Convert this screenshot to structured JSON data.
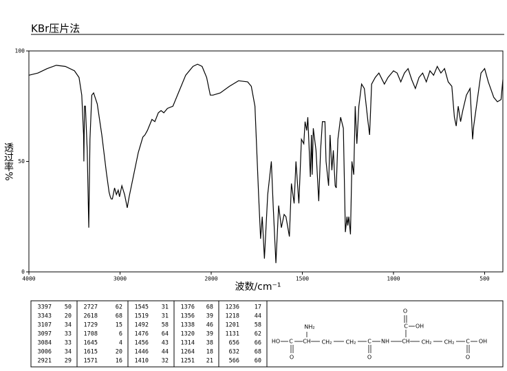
{
  "chart_data": {
    "type": "line",
    "title": "KBr压片法",
    "x_label": "波数/cm⁻¹",
    "y_label": "透过率%",
    "xlim": [
      4000,
      400
    ],
    "xticks": [
      4000,
      3000,
      2000,
      1500,
      1000,
      500
    ],
    "ylim": [
      0,
      100
    ],
    "yticks": [
      0,
      50,
      100
    ],
    "color": "#000000",
    "x": [
      4000,
      3900,
      3800,
      3700,
      3600,
      3500,
      3450,
      3420,
      3400,
      3397,
      3390,
      3380,
      3360,
      3343,
      3330,
      3310,
      3290,
      3250,
      3200,
      3150,
      3120,
      3107,
      3097,
      3084,
      3060,
      3040,
      3020,
      3006,
      2980,
      2950,
      2921,
      2900,
      2850,
      2800,
      2750,
      2727,
      2700,
      2650,
      2618,
      2580,
      2550,
      2520,
      2480,
      2420,
      2350,
      2280,
      2200,
      2150,
      2100,
      2050,
      2010,
      1990,
      1950,
      1900,
      1850,
      1800,
      1780,
      1760,
      1740,
      1729,
      1720,
      1708,
      1690,
      1670,
      1660,
      1645,
      1630,
      1615,
      1600,
      1590,
      1571,
      1560,
      1545,
      1535,
      1519,
      1505,
      1492,
      1485,
      1476,
      1470,
      1456,
      1450,
      1446,
      1440,
      1425,
      1410,
      1400,
      1390,
      1376,
      1370,
      1356,
      1348,
      1338,
      1330,
      1320,
      1314,
      1305,
      1290,
      1275,
      1264,
      1255,
      1251,
      1245,
      1236,
      1228,
      1218,
      1210,
      1201,
      1190,
      1175,
      1160,
      1140,
      1131,
      1120,
      1100,
      1080,
      1050,
      1030,
      1000,
      980,
      960,
      940,
      920,
      900,
      880,
      860,
      840,
      820,
      800,
      780,
      760,
      740,
      720,
      700,
      680,
      666,
      656,
      645,
      632,
      620,
      600,
      580,
      566,
      560,
      550,
      540,
      520,
      500,
      480,
      450,
      430,
      410,
      400
    ],
    "values": [
      89,
      90,
      92,
      93.5,
      93,
      91,
      88,
      80,
      62,
      50,
      75,
      75,
      55,
      20,
      60,
      80,
      81,
      76,
      62,
      45,
      36,
      34,
      33,
      33,
      38,
      35,
      37,
      34,
      39,
      35,
      29,
      34,
      44,
      54,
      61,
      62,
      64,
      69,
      68,
      72,
      73,
      72,
      74,
      75,
      82,
      89,
      93,
      94,
      93,
      88,
      80,
      80,
      81,
      84,
      86.5,
      86,
      84,
      75,
      35,
      15,
      25,
      6,
      35,
      50,
      30,
      4,
      30,
      20,
      26,
      25,
      16,
      40,
      31,
      50,
      31,
      60,
      58,
      68,
      64,
      70,
      43,
      62,
      44,
      65,
      55,
      32,
      55,
      68,
      68,
      50,
      39,
      62,
      46,
      55,
      39,
      38,
      60,
      70,
      65,
      18,
      25,
      21,
      25,
      17,
      50,
      44,
      75,
      58,
      75,
      85,
      83,
      68,
      62,
      85,
      88,
      90,
      85,
      88,
      91,
      90,
      86,
      90,
      92,
      87,
      83,
      88,
      90,
      86,
      91,
      89,
      93,
      90,
      92,
      86,
      84,
      70,
      66,
      75,
      68,
      73,
      80,
      83,
      60,
      66,
      72,
      78,
      90,
      92,
      86,
      79,
      77,
      78,
      87
    ]
  },
  "peak_table": [
    [
      3397,
      50
    ],
    [
      3343,
      20
    ],
    [
      3107,
      34
    ],
    [
      3097,
      33
    ],
    [
      3084,
      33
    ],
    [
      3006,
      34
    ],
    [
      2921,
      29
    ],
    [
      2727,
      62
    ],
    [
      2618,
      68
    ],
    [
      1729,
      15
    ],
    [
      1708,
      6
    ],
    [
      1645,
      4
    ],
    [
      1615,
      20
    ],
    [
      1571,
      16
    ],
    [
      1545,
      31
    ],
    [
      1519,
      31
    ],
    [
      1492,
      58
    ],
    [
      1476,
      64
    ],
    [
      1456,
      43
    ],
    [
      1446,
      44
    ],
    [
      1410,
      32
    ],
    [
      1376,
      68
    ],
    [
      1356,
      39
    ],
    [
      1338,
      46
    ],
    [
      1320,
      39
    ],
    [
      1314,
      38
    ],
    [
      1264,
      18
    ],
    [
      1251,
      21
    ],
    [
      1236,
      17
    ],
    [
      1218,
      44
    ],
    [
      1201,
      58
    ],
    [
      1131,
      62
    ],
    [
      656,
      66
    ],
    [
      632,
      68
    ],
    [
      566,
      60
    ]
  ],
  "structure": {
    "labels": [
      "HO",
      "C",
      "CH",
      "CH₂",
      "CH₂",
      "C",
      "NH",
      "CH",
      "CH₂",
      "CH₂",
      "C",
      "OH",
      "NH₂",
      "O",
      "O",
      "C",
      "O",
      "OH",
      "O"
    ]
  }
}
